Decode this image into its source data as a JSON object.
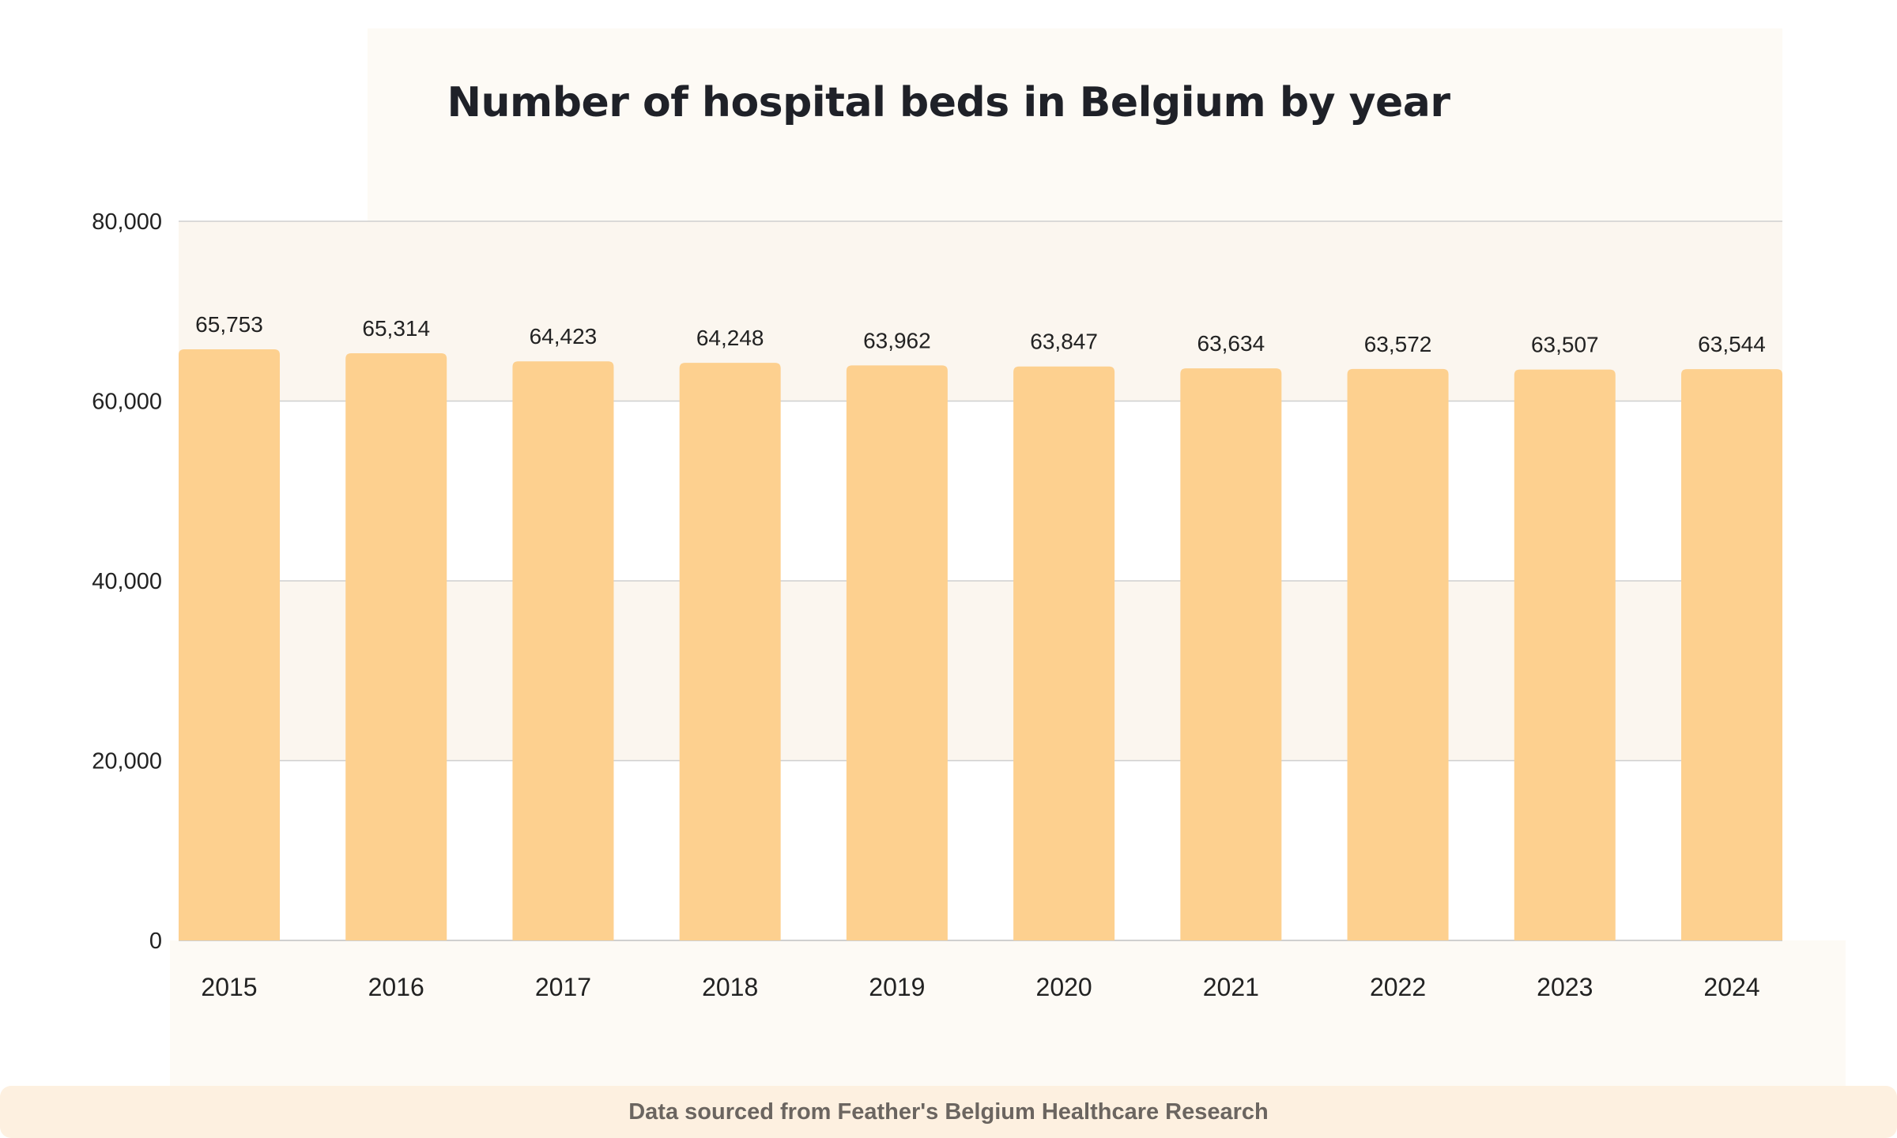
{
  "title": "Number of hospital beds in Belgium by year",
  "footer": "Data sourced from Feather's Belgium Healthcare Research",
  "colors": {
    "bar": "#fdd08f",
    "grid": "#cfcfcf",
    "band": "#fbf6ef",
    "text": "#222222"
  },
  "chart_data": {
    "type": "bar",
    "title": "Number of hospital beds in Belgium by year",
    "xlabel": "",
    "ylabel": "",
    "categories": [
      "2015",
      "2016",
      "2017",
      "2018",
      "2019",
      "2020",
      "2021",
      "2022",
      "2023",
      "2024"
    ],
    "values": [
      65753,
      65314,
      64423,
      64248,
      63962,
      63847,
      63634,
      63572,
      63507,
      63544
    ],
    "value_labels": [
      "65,753",
      "65,314",
      "64,423",
      "64,248",
      "63,962",
      "63,847",
      "63,634",
      "63,572",
      "63,507",
      "63,544"
    ],
    "ylim": [
      0,
      80000
    ],
    "yticks": [
      0,
      20000,
      40000,
      60000,
      80000
    ],
    "ytick_labels": [
      "0",
      "20,000",
      "40,000",
      "60,000",
      "80,000"
    ],
    "grid": true,
    "legend": "none"
  }
}
